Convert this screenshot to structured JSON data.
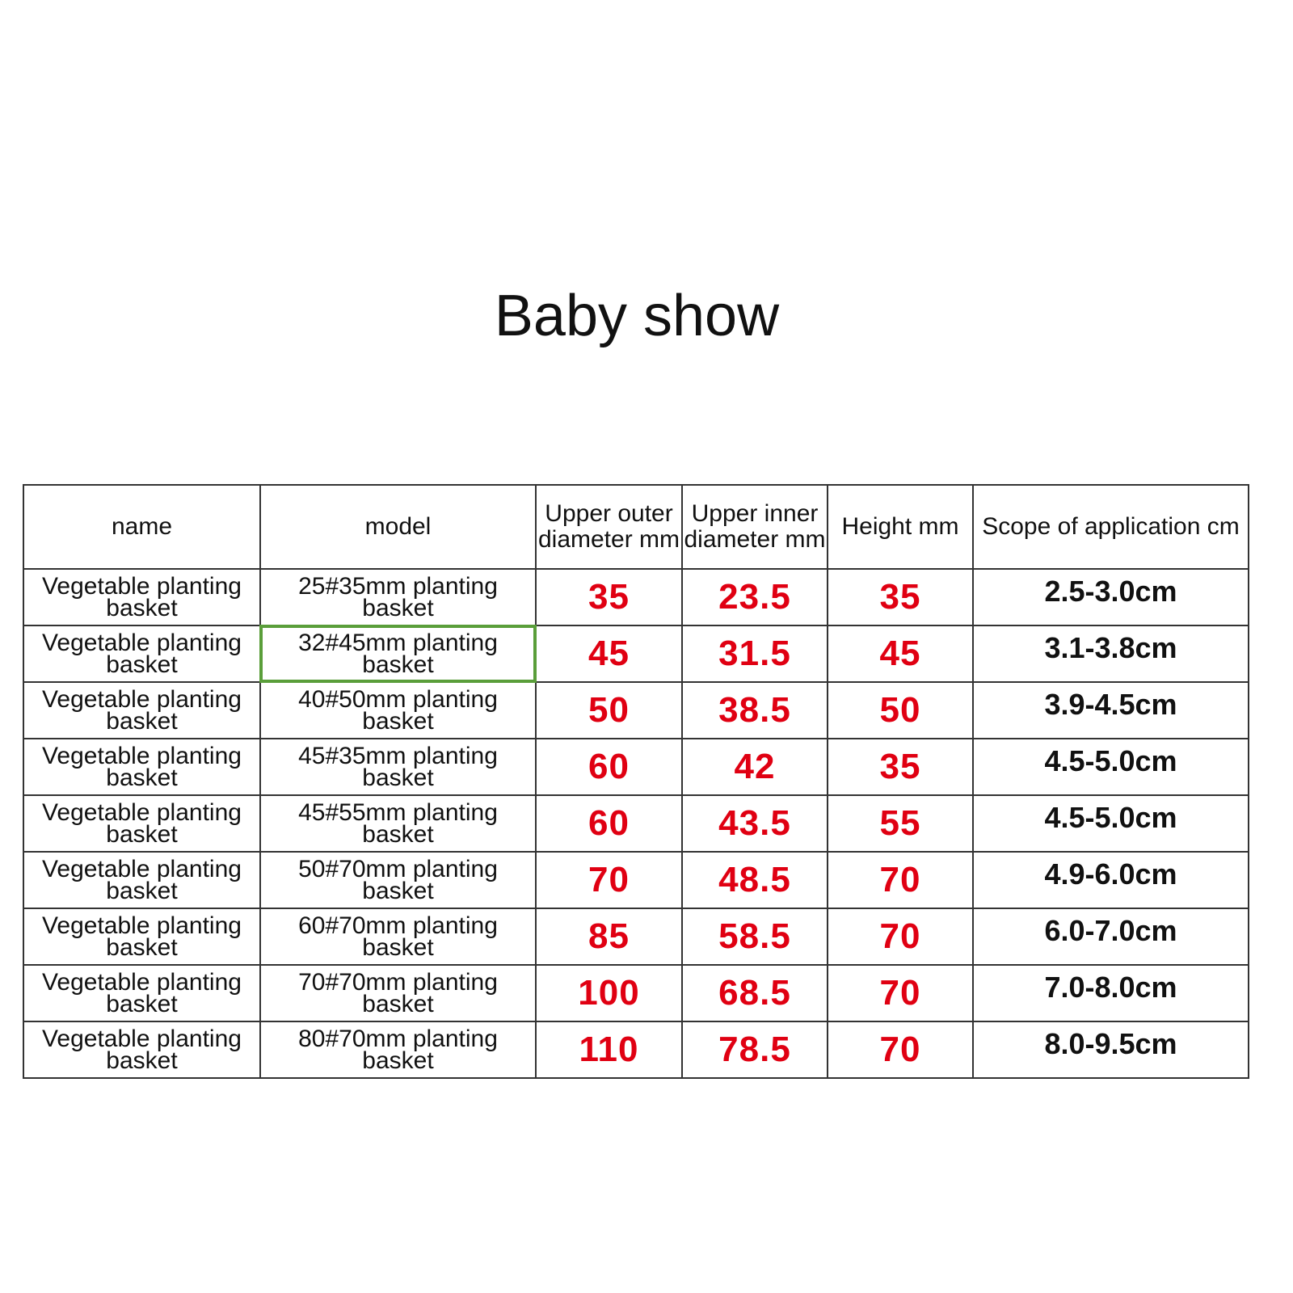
{
  "title": "Baby show",
  "table": {
    "headers": [
      "name",
      "model",
      "Upper outer diameter mm",
      "Upper inner diameter mm",
      "Height mm",
      "Scope of application cm"
    ],
    "rows": [
      {
        "name": "Vegetable planting basket",
        "model": "25#35mm planting basket",
        "outer": "35",
        "inner": "23.5",
        "height": "35",
        "scope": "2.5-3.0cm"
      },
      {
        "name": "Vegetable planting basket",
        "model": "32#45mm planting basket",
        "outer": "45",
        "inner": "31.5",
        "height": "45",
        "scope": "3.1-3.8cm"
      },
      {
        "name": "Vegetable planting basket",
        "model": "40#50mm planting basket",
        "outer": "50",
        "inner": "38.5",
        "height": "50",
        "scope": "3.9-4.5cm"
      },
      {
        "name": "Vegetable planting basket",
        "model": "45#35mm planting basket",
        "outer": "60",
        "inner": "42",
        "height": "35",
        "scope": "4.5-5.0cm"
      },
      {
        "name": "Vegetable planting basket",
        "model": "45#55mm planting basket",
        "outer": "60",
        "inner": "43.5",
        "height": "55",
        "scope": "4.5-5.0cm"
      },
      {
        "name": "Vegetable planting basket",
        "model": "50#70mm planting basket",
        "outer": "70",
        "inner": "48.5",
        "height": "70",
        "scope": "4.9-6.0cm"
      },
      {
        "name": "Vegetable planting basket",
        "model": "60#70mm planting basket",
        "outer": "85",
        "inner": "58.5",
        "height": "70",
        "scope": "6.0-7.0cm"
      },
      {
        "name": "Vegetable planting basket",
        "model": "70#70mm planting basket",
        "outer": "100",
        "inner": "68.5",
        "height": "70",
        "scope": "7.0-8.0cm"
      },
      {
        "name": "Vegetable planting basket",
        "model": "80#70mm planting basket",
        "outer": "110",
        "inner": "78.5",
        "height": "70",
        "scope": "8.0-9.5cm"
      }
    ]
  },
  "colors": {
    "value_red": "#e00012",
    "selection_green": "#5a9e3a"
  }
}
